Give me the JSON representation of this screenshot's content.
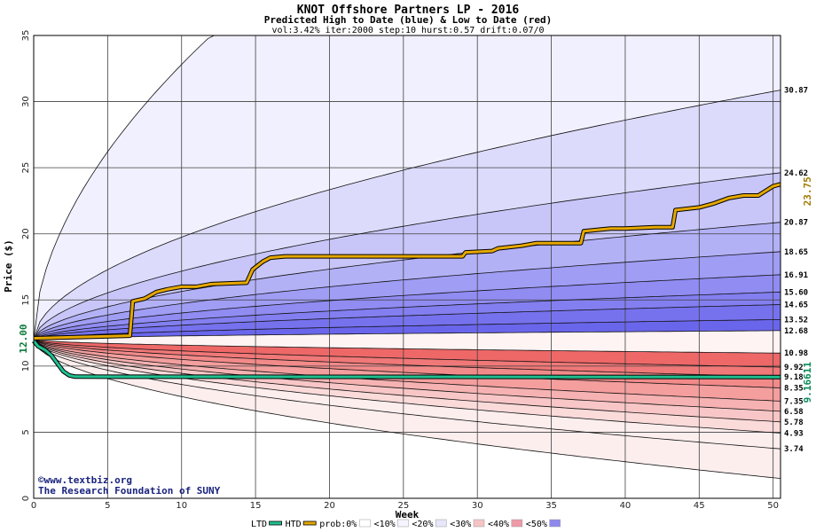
{
  "chart_data": {
    "type": "area",
    "title": "KNOT Offshore Partners LP - 2016",
    "subtitle": "Predicted High to Date (blue) &  Low to Date (red)",
    "params": "vol:3.42% iter:2000 step:10 hurst:0.57 drift:0.07/0",
    "xlabel": "Week",
    "ylabel": "Price ($)",
    "xlim": [
      0,
      50.5
    ],
    "ylim": [
      0,
      35
    ],
    "xticks": [
      0,
      5,
      10,
      15,
      20,
      25,
      30,
      35,
      40,
      45,
      50
    ],
    "yticks": [
      0,
      5,
      10,
      15,
      20,
      25,
      30,
      35
    ],
    "grid": true,
    "start_price": 12.0,
    "start_price_label": "12.00",
    "high_curves_at_end": [
      30.87,
      24.62,
      20.87,
      18.65,
      16.91,
      15.6,
      14.65,
      13.52,
      12.68
    ],
    "low_curves_at_end": [
      10.98,
      9.92,
      9.18,
      8.35,
      7.35,
      6.58,
      5.78,
      4.93,
      3.74
    ],
    "outer_high_curve_reaches_35_at_week": 12,
    "outer_low_curve_at_end": 1.5,
    "right_labels": [
      {
        "text": "30.87",
        "value": 30.87
      },
      {
        "text": "24.62",
        "value": 24.62
      },
      {
        "text": "20.87",
        "value": 20.87
      },
      {
        "text": "18.65",
        "value": 18.65
      },
      {
        "text": "16.91",
        "value": 16.91
      },
      {
        "text": "15.60",
        "value": 15.6
      },
      {
        "text": "14.65",
        "value": 14.65
      },
      {
        "text": "13.52",
        "value": 13.52
      },
      {
        "text": "12.68",
        "value": 12.68
      },
      {
        "text": "10.98",
        "value": 10.98
      },
      {
        "text": "9.92",
        "value": 9.92
      },
      {
        "text": "9.18",
        "value": 9.18
      },
      {
        "text": "8.35",
        "value": 8.35
      },
      {
        "text": "7.35",
        "value": 7.35
      },
      {
        "text": "6.58",
        "value": 6.58
      },
      {
        "text": "5.78",
        "value": 5.78
      },
      {
        "text": "4.93",
        "value": 4.93
      },
      {
        "text": "3.74",
        "value": 3.74
      }
    ],
    "htd_label": "23.75",
    "ltd_label": "9.16611",
    "series": [
      {
        "name": "HTD",
        "color": "#e6a800",
        "points": [
          [
            0,
            12.1
          ],
          [
            6.5,
            12.3
          ],
          [
            6.7,
            14.9
          ],
          [
            7.5,
            15.1
          ],
          [
            8.3,
            15.6
          ],
          [
            9,
            15.8
          ],
          [
            10,
            16.0
          ],
          [
            11,
            16.0
          ],
          [
            12,
            16.2
          ],
          [
            14.4,
            16.3
          ],
          [
            14.8,
            17.3
          ],
          [
            15.5,
            17.9
          ],
          [
            16,
            18.2
          ],
          [
            17,
            18.3
          ],
          [
            29,
            18.3
          ],
          [
            29.2,
            18.6
          ],
          [
            31,
            18.7
          ],
          [
            31.4,
            18.9
          ],
          [
            33,
            19.1
          ],
          [
            34,
            19.3
          ],
          [
            37,
            19.3
          ],
          [
            37.2,
            20.2
          ],
          [
            39,
            20.4
          ],
          [
            40,
            20.4
          ],
          [
            42,
            20.5
          ],
          [
            43.2,
            20.5
          ],
          [
            43.4,
            21.8
          ],
          [
            45,
            22.0
          ],
          [
            46,
            22.3
          ],
          [
            47,
            22.7
          ],
          [
            48,
            22.9
          ],
          [
            49,
            22.9
          ],
          [
            50,
            23.6
          ],
          [
            50.5,
            23.75
          ]
        ]
      },
      {
        "name": "LTD",
        "color": "#20c090",
        "points": [
          [
            0,
            11.9
          ],
          [
            0.3,
            11.5
          ],
          [
            0.8,
            11.2
          ],
          [
            1.2,
            10.8
          ],
          [
            1.6,
            10.2
          ],
          [
            2,
            9.6
          ],
          [
            2.4,
            9.3
          ],
          [
            2.8,
            9.2
          ],
          [
            50.5,
            9.17
          ]
        ]
      }
    ]
  },
  "credits": {
    "line1": "©www.textbiz.org",
    "line2": "The Research Foundation of SUNY"
  },
  "legend": {
    "items": [
      {
        "label": "LTD",
        "swatch": "#20c090",
        "kind": "line"
      },
      {
        "label": "HTD",
        "swatch": "#e6a800",
        "kind": "line"
      },
      {
        "label": "prob:0%",
        "swatch": "#ffffff",
        "kind": "box"
      },
      {
        "label": "<10%",
        "swatch": "#f6f4fe",
        "kind": "box"
      },
      {
        "label": "<20%",
        "swatch": "#e8e6fa",
        "kind": "box"
      },
      {
        "label": "<30%",
        "swatch": "#f6c4c4",
        "kind": "box"
      },
      {
        "label": "<40%",
        "swatch": "#ee9aa8",
        "kind": "box"
      },
      {
        "label": "<50%",
        "swatch": "#8e88ee",
        "kind": "box"
      }
    ]
  },
  "colors": {
    "high_bands": [
      "#f1f0fe",
      "#dcdbfb",
      "#c8c6f8",
      "#b3b1f6",
      "#a09df4",
      "#908cf2",
      "#837ff0",
      "#7672ee",
      "#6a66ec"
    ],
    "low_bands": [
      "#fdeeee",
      "#fbdada",
      "#f8c6c6",
      "#f6b2b2",
      "#f49e9e",
      "#f28a8a",
      "#f07878",
      "#ee6868"
    ],
    "grid": "#404040"
  }
}
